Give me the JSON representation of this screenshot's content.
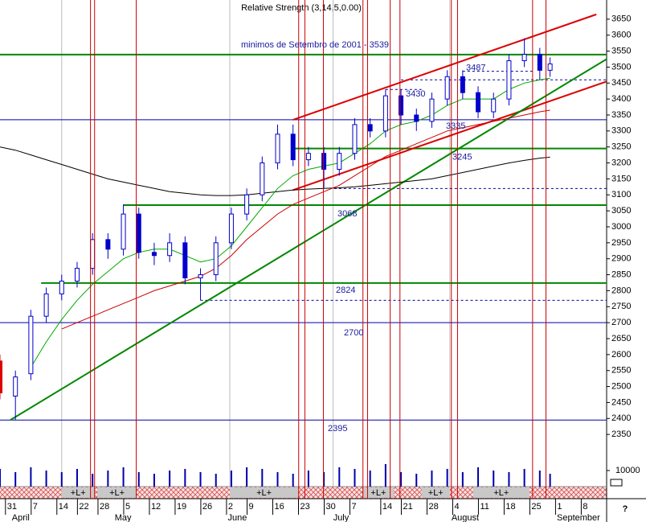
{
  "chart_data": {
    "type": "candlestick",
    "title": "Relative Strength (3,14,5,0.00)",
    "help": "?",
    "xlim": [
      -2,
      116
    ],
    "ylim": [
      2300,
      3710
    ],
    "yticks": [
      2350,
      2400,
      2450,
      2500,
      2550,
      2600,
      2650,
      2700,
      2750,
      2800,
      2850,
      2900,
      2950,
      3000,
      3050,
      3100,
      3150,
      3200,
      3250,
      3300,
      3350,
      3400,
      3450,
      3500,
      3550,
      3600,
      3650
    ],
    "xticks": [
      {
        "value": 0,
        "label": "31"
      },
      {
        "value": 5,
        "label": "7"
      },
      {
        "value": 10,
        "label": "14"
      },
      {
        "value": 14,
        "label": "22"
      },
      {
        "value": 18,
        "label": "28"
      },
      {
        "value": 23,
        "label": "5"
      },
      {
        "value": 28,
        "label": "12"
      },
      {
        "value": 33,
        "label": "19"
      },
      {
        "value": 38,
        "label": "26"
      },
      {
        "value": 43,
        "label": "2"
      },
      {
        "value": 47,
        "label": "9"
      },
      {
        "value": 52,
        "label": "16"
      },
      {
        "value": 57,
        "label": "23"
      },
      {
        "value": 62,
        "label": "30"
      },
      {
        "value": 67,
        "label": "7"
      },
      {
        "value": 73,
        "label": "14"
      },
      {
        "value": 77,
        "label": "21"
      },
      {
        "value": 82,
        "label": "28"
      },
      {
        "value": 87,
        "label": "4"
      },
      {
        "value": 92,
        "label": "11"
      },
      {
        "value": 97,
        "label": "18"
      },
      {
        "value": 102,
        "label": "25"
      },
      {
        "value": 107,
        "label": "1"
      },
      {
        "value": 112,
        "label": "8"
      }
    ],
    "month_ticks": [
      {
        "value": 0,
        "label": "April"
      },
      {
        "value": 20,
        "label": "May"
      },
      {
        "value": 42,
        "label": "June"
      },
      {
        "value": 62.5,
        "label": "July"
      },
      {
        "value": 85.5,
        "label": "August"
      },
      {
        "value": 106,
        "label": "September"
      }
    ],
    "x": [
      -2,
      1,
      4,
      7,
      10,
      13,
      16,
      19,
      22,
      25,
      28,
      31,
      34,
      37,
      40,
      43,
      46,
      49,
      52,
      55,
      58,
      61,
      64,
      67,
      70,
      73,
      76,
      79,
      82,
      85,
      88,
      91,
      94,
      97,
      100,
      103,
      105
    ],
    "open": [
      2580,
      2470,
      2540,
      2720,
      2790,
      2830,
      2870,
      2960,
      2930,
      3040,
      2920,
      2910,
      2950,
      2840,
      2850,
      2950,
      3040,
      3100,
      3200,
      3290,
      3210,
      3230,
      3180,
      3230,
      3320,
      3300,
      3410,
      3350,
      3330,
      3400,
      3470,
      3420,
      3360,
      3400,
      3520,
      3540,
      3490
    ],
    "high": [
      2600,
      2550,
      2740,
      2810,
      2850,
      2890,
      2980,
      2980,
      3070,
      3060,
      2950,
      2980,
      2970,
      2870,
      2970,
      3060,
      3120,
      3220,
      3320,
      3320,
      3250,
      3250,
      3250,
      3340,
      3340,
      3430,
      3430,
      3370,
      3420,
      3490,
      3490,
      3440,
      3420,
      3540,
      3590,
      3560,
      3530
    ],
    "low": [
      2460,
      2395,
      2520,
      2700,
      2770,
      2810,
      2850,
      2900,
      2910,
      2900,
      2880,
      2890,
      2820,
      2770,
      2830,
      2930,
      3020,
      3080,
      3180,
      3190,
      3190,
      3120,
      3160,
      3210,
      3280,
      3280,
      3320,
      3300,
      3310,
      3380,
      3400,
      3340,
      3340,
      3380,
      3500,
      3460,
      3470
    ],
    "close": [
      2480,
      2530,
      2720,
      2790,
      2830,
      2870,
      2960,
      2930,
      3040,
      2920,
      2910,
      2950,
      2840,
      2850,
      2950,
      3040,
      3100,
      3200,
      3290,
      3210,
      3230,
      3180,
      3230,
      3320,
      3300,
      3410,
      3350,
      3330,
      3400,
      3470,
      3420,
      3360,
      3400,
      3520,
      3540,
      3490,
      3510
    ],
    "volume": [
      11000,
      9000,
      12000,
      10000,
      9000,
      11000,
      8000,
      10000,
      12000,
      9000,
      8000,
      10000,
      11000,
      9000,
      8000,
      10000,
      12000,
      11000,
      9000,
      8000,
      10000,
      9000,
      12000,
      11000,
      10000,
      14000,
      9000,
      8000,
      10000,
      11000,
      9000,
      12000,
      10000,
      9000,
      11000,
      10000,
      8000
    ],
    "volume_ylim": [
      0,
      20000
    ],
    "volume_ticks": [
      10000
    ],
    "up_color": "#0000cc",
    "down_color": "#0000cc",
    "first_color": "#dd0000",
    "series": [
      {
        "color": "#000000",
        "values": [
          3250,
          3240,
          3225,
          3210,
          3195,
          3180,
          3165,
          3150,
          3140,
          3130,
          3120,
          3110,
          3105,
          3100,
          3098,
          3098,
          3100,
          3105,
          3110,
          3115,
          3118,
          3120,
          3122,
          3125,
          3130,
          3135,
          3140,
          3145,
          3150,
          3160,
          3170,
          3180,
          3190,
          3200,
          3208,
          3215,
          3218
        ]
      },
      {
        "color": "#cc0000",
        "values": [
          null,
          null,
          null,
          null,
          2680,
          2700,
          2720,
          2740,
          2760,
          2780,
          2800,
          2815,
          2830,
          2845,
          2870,
          2910,
          2960,
          3000,
          3040,
          3070,
          3090,
          3110,
          3130,
          3160,
          3190,
          3220,
          3240,
          3260,
          3280,
          3300,
          3310,
          3320,
          3330,
          3340,
          3350,
          3360,
          3365
        ]
      },
      {
        "color": "#00aa00",
        "values": [
          null,
          null,
          2560,
          2640,
          2710,
          2770,
          2820,
          2860,
          2900,
          2920,
          2930,
          2930,
          2910,
          2890,
          2900,
          2940,
          3000,
          3060,
          3120,
          3160,
          3180,
          3190,
          3200,
          3230,
          3260,
          3300,
          3320,
          3330,
          3350,
          3380,
          3400,
          3400,
          3400,
          3430,
          3450,
          3460,
          3465
        ]
      }
    ],
    "levels": [
      {
        "value": 3539,
        "label": "minimos de Setembro de 2001 - 3539",
        "color": "#008800",
        "style": "solid",
        "from": -2
      },
      {
        "value": 3487,
        "label": "3487",
        "color": "#0000aa",
        "style": "dotted",
        "from": 88,
        "to": 102
      },
      {
        "value": 3430,
        "label": "3430",
        "color": "#0000aa",
        "style": "dotted",
        "from": 73,
        "to": 80
      },
      {
        "value": 3460,
        "color": "#0000aa",
        "style": "dotted",
        "from": 76
      },
      {
        "value": 3335,
        "label": "3335",
        "color": "#0000aa",
        "style": "solid",
        "from": -2
      },
      {
        "value": 3245,
        "label": "3245",
        "color": "#008800",
        "style": "solid",
        "from": 55
      },
      {
        "value": 3120,
        "color": "#0000aa",
        "style": "dotted",
        "from": 63
      },
      {
        "value": 3068,
        "label": "3068",
        "color": "#008800",
        "style": "solid",
        "from": 22
      },
      {
        "value": 2824,
        "label": "2824",
        "color": "#008800",
        "style": "solid",
        "from": 6
      },
      {
        "value": 2770,
        "color": "#0000aa",
        "style": "dotted",
        "from": 37
      },
      {
        "value": 2700,
        "label": "2700",
        "color": "#0000aa",
        "style": "solid",
        "from": -2
      },
      {
        "value": 2395,
        "label": "2395",
        "color": "#0000aa",
        "style": "solid",
        "from": -2
      }
    ],
    "trendlines": [
      {
        "x": [
          55,
          114
        ],
        "values": [
          3335,
          3665
        ],
        "color": "#dd0000"
      },
      {
        "x": [
          55,
          116
        ],
        "values": [
          3115,
          3455
        ],
        "color": "#dd0000"
      },
      {
        "x": [
          0,
          116
        ],
        "values": [
          2395,
          3525
        ],
        "color": "#008800"
      }
    ],
    "event_lines": [
      15.6,
      16.4,
      24.5,
      56.1,
      57.3,
      60.9,
      68.6,
      69.5,
      73.9,
      75.8,
      85.8,
      87,
      101.6,
      104.2
    ],
    "event_color": "#cc0000",
    "month_lines": [
      10,
      42.7,
      62.8,
      85.5
    ],
    "signals": [
      {
        "start": 10,
        "end": 16.4,
        "label": "+L+"
      },
      {
        "start": 17,
        "end": 24.5,
        "label": "+L+"
      },
      {
        "start": 42.7,
        "end": 56,
        "label": "+L+"
      },
      {
        "start": 68.6,
        "end": 74.6,
        "label": "+L+"
      },
      {
        "start": 80,
        "end": 85.5,
        "label": "+L+"
      },
      {
        "start": 90,
        "end": 101,
        "label": "+L+"
      }
    ]
  }
}
